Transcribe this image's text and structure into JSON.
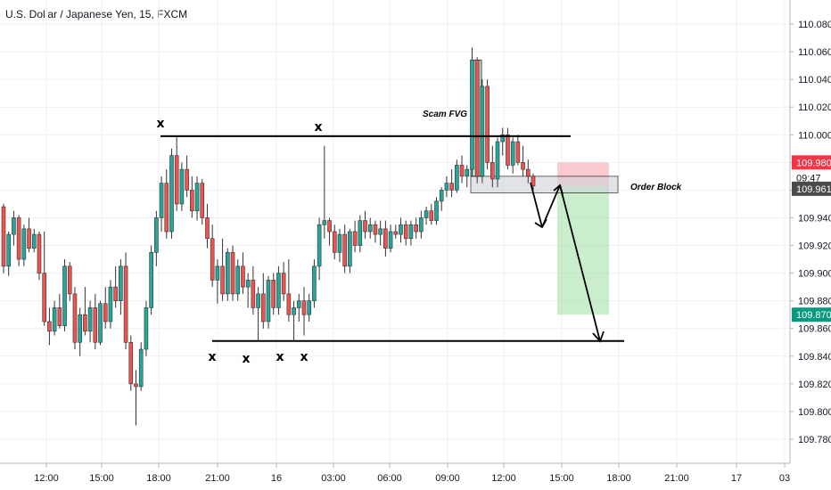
{
  "chart_data": {
    "type": "candlestick",
    "title": "U.S. Dollar / Japanese Yen, 15, FXCM",
    "ylim": [
      109.76,
      110.1
    ],
    "y_ticks": [
      "110.080",
      "110.060",
      "110.040",
      "110.020",
      "110.000",
      "109.980",
      "109.960",
      "109.940",
      "109.920",
      "109.900",
      "109.880",
      "109.860",
      "109.840",
      "109.820",
      "109.800",
      "109.780"
    ],
    "x_ticks": [
      "12:00",
      "15:00",
      "18:00",
      "21:00",
      "16",
      "03:00",
      "06:00",
      "09:00",
      "12:00",
      "15:00",
      "18:00",
      "21:00",
      "17",
      "03"
    ],
    "grid": true,
    "price_badges": [
      {
        "value": "109.980",
        "color": "#f23645",
        "y_value": 109.98
      },
      {
        "value": "09:47",
        "color": "#ffffff",
        "y_value": 109.969
      },
      {
        "value": "109.961",
        "color": "#4a4a4a",
        "y_value": 109.961
      },
      {
        "value": "109.870",
        "color": "#089981",
        "y_value": 109.87
      }
    ],
    "annotations": {
      "scam_fvg": "Scam FVG",
      "order_block": "Order Block",
      "x_mark": "x"
    },
    "levels": {
      "resistance": 109.999,
      "support": 109.851,
      "order_block_top": 109.97,
      "order_block_bottom": 109.958,
      "fvg_top": 110.054,
      "fvg_bottom": 109.97,
      "stop_top": 109.98,
      "entry": 109.963,
      "target": 109.87
    },
    "candles": [
      {
        "o": 109.948,
        "h": 109.95,
        "l": 109.9,
        "c": 109.905
      },
      {
        "o": 109.905,
        "h": 109.93,
        "l": 109.898,
        "c": 109.928
      },
      {
        "o": 109.928,
        "h": 109.945,
        "l": 109.92,
        "c": 109.94
      },
      {
        "o": 109.94,
        "h": 109.942,
        "l": 109.905,
        "c": 109.91
      },
      {
        "o": 109.91,
        "h": 109.935,
        "l": 109.905,
        "c": 109.932
      },
      {
        "o": 109.932,
        "h": 109.94,
        "l": 109.915,
        "c": 109.918
      },
      {
        "o": 109.918,
        "h": 109.932,
        "l": 109.915,
        "c": 109.928
      },
      {
        "o": 109.928,
        "h": 109.93,
        "l": 109.895,
        "c": 109.9
      },
      {
        "o": 109.9,
        "h": 109.93,
        "l": 109.862,
        "c": 109.865
      },
      {
        "o": 109.865,
        "h": 109.875,
        "l": 109.848,
        "c": 109.858
      },
      {
        "o": 109.858,
        "h": 109.88,
        "l": 109.855,
        "c": 109.875
      },
      {
        "o": 109.875,
        "h": 109.885,
        "l": 109.86,
        "c": 109.862
      },
      {
        "o": 109.862,
        "h": 109.91,
        "l": 109.858,
        "c": 109.905
      },
      {
        "o": 109.905,
        "h": 109.908,
        "l": 109.88,
        "c": 109.885
      },
      {
        "o": 109.885,
        "h": 109.89,
        "l": 109.845,
        "c": 109.85
      },
      {
        "o": 109.85,
        "h": 109.875,
        "l": 109.84,
        "c": 109.87
      },
      {
        "o": 109.87,
        "h": 109.89,
        "l": 109.855,
        "c": 109.858
      },
      {
        "o": 109.858,
        "h": 109.88,
        "l": 109.85,
        "c": 109.875
      },
      {
        "o": 109.875,
        "h": 109.885,
        "l": 109.845,
        "c": 109.85
      },
      {
        "o": 109.85,
        "h": 109.88,
        "l": 109.848,
        "c": 109.878
      },
      {
        "o": 109.878,
        "h": 109.89,
        "l": 109.86,
        "c": 109.865
      },
      {
        "o": 109.865,
        "h": 109.895,
        "l": 109.86,
        "c": 109.89
      },
      {
        "o": 109.89,
        "h": 109.905,
        "l": 109.875,
        "c": 109.88
      },
      {
        "o": 109.88,
        "h": 109.91,
        "l": 109.87,
        "c": 109.905
      },
      {
        "o": 109.905,
        "h": 109.915,
        "l": 109.845,
        "c": 109.85
      },
      {
        "o": 109.85,
        "h": 109.855,
        "l": 109.815,
        "c": 109.82
      },
      {
        "o": 109.82,
        "h": 109.83,
        "l": 109.79,
        "c": 109.818
      },
      {
        "o": 109.818,
        "h": 109.85,
        "l": 109.815,
        "c": 109.845
      },
      {
        "o": 109.845,
        "h": 109.88,
        "l": 109.84,
        "c": 109.875
      },
      {
        "o": 109.875,
        "h": 109.92,
        "l": 109.87,
        "c": 109.915
      },
      {
        "o": 109.915,
        "h": 109.945,
        "l": 109.905,
        "c": 109.94
      },
      {
        "o": 109.94,
        "h": 109.97,
        "l": 109.93,
        "c": 109.965
      },
      {
        "o": 109.965,
        "h": 109.975,
        "l": 109.925,
        "c": 109.93
      },
      {
        "o": 109.93,
        "h": 109.99,
        "l": 109.925,
        "c": 109.985
      },
      {
        "o": 109.985,
        "h": 109.998,
        "l": 109.945,
        "c": 109.95
      },
      {
        "o": 109.95,
        "h": 109.98,
        "l": 109.945,
        "c": 109.975
      },
      {
        "o": 109.975,
        "h": 109.985,
        "l": 109.955,
        "c": 109.96
      },
      {
        "o": 109.96,
        "h": 109.97,
        "l": 109.94,
        "c": 109.945
      },
      {
        "o": 109.945,
        "h": 109.97,
        "l": 109.938,
        "c": 109.965
      },
      {
        "o": 109.965,
        "h": 109.968,
        "l": 109.935,
        "c": 109.94
      },
      {
        "o": 109.94,
        "h": 109.95,
        "l": 109.918,
        "c": 109.925
      },
      {
        "o": 109.925,
        "h": 109.935,
        "l": 109.89,
        "c": 109.895
      },
      {
        "o": 109.895,
        "h": 109.91,
        "l": 109.878,
        "c": 109.905
      },
      {
        "o": 109.905,
        "h": 109.925,
        "l": 109.88,
        "c": 109.885
      },
      {
        "o": 109.885,
        "h": 109.918,
        "l": 109.88,
        "c": 109.915
      },
      {
        "o": 109.915,
        "h": 109.92,
        "l": 109.88,
        "c": 109.885
      },
      {
        "o": 109.885,
        "h": 109.91,
        "l": 109.88,
        "c": 109.905
      },
      {
        "o": 109.905,
        "h": 109.915,
        "l": 109.885,
        "c": 109.89
      },
      {
        "o": 109.89,
        "h": 109.9,
        "l": 109.875,
        "c": 109.895
      },
      {
        "o": 109.895,
        "h": 109.905,
        "l": 109.87,
        "c": 109.875
      },
      {
        "o": 109.875,
        "h": 109.89,
        "l": 109.851,
        "c": 109.885
      },
      {
        "o": 109.885,
        "h": 109.9,
        "l": 109.86,
        "c": 109.865
      },
      {
        "o": 109.865,
        "h": 109.898,
        "l": 109.86,
        "c": 109.895
      },
      {
        "o": 109.895,
        "h": 109.9,
        "l": 109.87,
        "c": 109.875
      },
      {
        "o": 109.875,
        "h": 109.905,
        "l": 109.87,
        "c": 109.9
      },
      {
        "o": 109.9,
        "h": 109.908,
        "l": 109.88,
        "c": 109.885
      },
      {
        "o": 109.885,
        "h": 109.91,
        "l": 109.865,
        "c": 109.87
      },
      {
        "o": 109.87,
        "h": 109.88,
        "l": 109.851,
        "c": 109.875
      },
      {
        "o": 109.875,
        "h": 109.885,
        "l": 109.865,
        "c": 109.88
      },
      {
        "o": 109.88,
        "h": 109.89,
        "l": 109.855,
        "c": 109.87
      },
      {
        "o": 109.87,
        "h": 109.885,
        "l": 109.865,
        "c": 109.88
      },
      {
        "o": 109.88,
        "h": 109.91,
        "l": 109.875,
        "c": 109.905
      },
      {
        "o": 109.905,
        "h": 109.94,
        "l": 109.895,
        "c": 109.935
      },
      {
        "o": 109.935,
        "h": 109.992,
        "l": 109.925,
        "c": 109.938
      },
      {
        "o": 109.938,
        "h": 109.94,
        "l": 109.92,
        "c": 109.93
      },
      {
        "o": 109.93,
        "h": 109.935,
        "l": 109.91,
        "c": 109.915
      },
      {
        "o": 109.915,
        "h": 109.932,
        "l": 109.908,
        "c": 109.928
      },
      {
        "o": 109.928,
        "h": 109.935,
        "l": 109.9,
        "c": 109.905
      },
      {
        "o": 109.905,
        "h": 109.932,
        "l": 109.9,
        "c": 109.93
      },
      {
        "o": 109.93,
        "h": 109.938,
        "l": 109.915,
        "c": 109.92
      },
      {
        "o": 109.92,
        "h": 109.942,
        "l": 109.915,
        "c": 109.938
      },
      {
        "o": 109.938,
        "h": 109.945,
        "l": 109.925,
        "c": 109.93
      },
      {
        "o": 109.93,
        "h": 109.94,
        "l": 109.925,
        "c": 109.935
      },
      {
        "o": 109.935,
        "h": 109.938,
        "l": 109.922,
        "c": 109.928
      },
      {
        "o": 109.928,
        "h": 109.938,
        "l": 109.92,
        "c": 109.932
      },
      {
        "o": 109.932,
        "h": 109.938,
        "l": 109.912,
        "c": 109.918
      },
      {
        "o": 109.918,
        "h": 109.935,
        "l": 109.915,
        "c": 109.93
      },
      {
        "o": 109.93,
        "h": 109.935,
        "l": 109.925,
        "c": 109.928
      },
      {
        "o": 109.928,
        "h": 109.94,
        "l": 109.922,
        "c": 109.935
      },
      {
        "o": 109.935,
        "h": 109.938,
        "l": 109.92,
        "c": 109.925
      },
      {
        "o": 109.925,
        "h": 109.938,
        "l": 109.92,
        "c": 109.935
      },
      {
        "o": 109.935,
        "h": 109.94,
        "l": 109.925,
        "c": 109.93
      },
      {
        "o": 109.93,
        "h": 109.945,
        "l": 109.925,
        "c": 109.94
      },
      {
        "o": 109.94,
        "h": 109.948,
        "l": 109.935,
        "c": 109.945
      },
      {
        "o": 109.945,
        "h": 109.95,
        "l": 109.935,
        "c": 109.938
      },
      {
        "o": 109.938,
        "h": 109.955,
        "l": 109.935,
        "c": 109.952
      },
      {
        "o": 109.952,
        "h": 109.962,
        "l": 109.945,
        "c": 109.96
      },
      {
        "o": 109.96,
        "h": 109.97,
        "l": 109.955,
        "c": 109.965
      },
      {
        "o": 109.965,
        "h": 109.975,
        "l": 109.955,
        "c": 109.96
      },
      {
        "o": 109.96,
        "h": 109.982,
        "l": 109.958,
        "c": 109.978
      },
      {
        "o": 109.978,
        "h": 109.985,
        "l": 109.965,
        "c": 109.97
      },
      {
        "o": 109.97,
        "h": 109.978,
        "l": 109.962,
        "c": 109.975
      },
      {
        "o": 109.975,
        "h": 110.063,
        "l": 109.97,
        "c": 110.054
      },
      {
        "o": 110.054,
        "h": 110.056,
        "l": 109.965,
        "c": 109.97
      },
      {
        "o": 109.97,
        "h": 110.04,
        "l": 109.965,
        "c": 110.035
      },
      {
        "o": 110.035,
        "h": 110.04,
        "l": 109.975,
        "c": 109.98
      },
      {
        "o": 109.98,
        "h": 109.992,
        "l": 109.962,
        "c": 109.968
      },
      {
        "o": 109.968,
        "h": 109.998,
        "l": 109.962,
        "c": 109.995
      },
      {
        "o": 109.995,
        "h": 110.005,
        "l": 109.985,
        "c": 110.0
      },
      {
        "o": 110.0,
        "h": 110.005,
        "l": 109.975,
        "c": 109.978
      },
      {
        "o": 109.978,
        "h": 109.998,
        "l": 109.972,
        "c": 109.995
      },
      {
        "o": 109.995,
        "h": 110.0,
        "l": 109.978,
        "c": 109.98
      },
      {
        "o": 109.98,
        "h": 109.992,
        "l": 109.97,
        "c": 109.975
      },
      {
        "o": 109.975,
        "h": 109.982,
        "l": 109.965,
        "c": 109.97
      },
      {
        "o": 109.97,
        "h": 109.972,
        "l": 109.96,
        "c": 109.963
      }
    ]
  }
}
